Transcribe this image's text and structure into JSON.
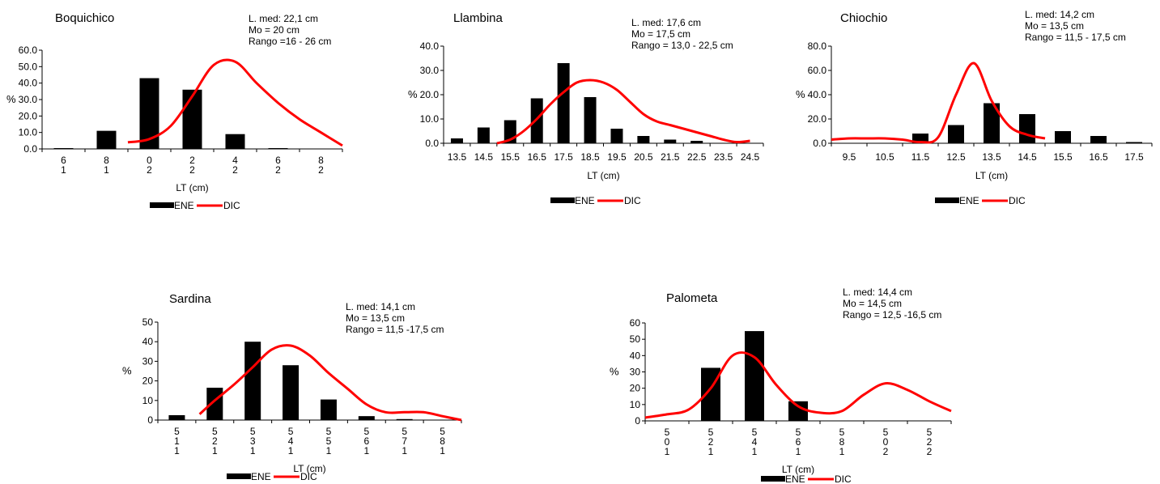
{
  "legend": {
    "bar_label": "ENE",
    "line_label": "DIC"
  },
  "colors": {
    "bars": "#000000",
    "line": "#ff0000",
    "axis": "#000000"
  },
  "chart_data": [
    {
      "type": "bar",
      "title": "Boquichico",
      "annotation": [
        "L. med:  22,1 cm",
        "Mo =  20 cm",
        "Rango =16 - 26 cm"
      ],
      "xlabel": "LT (cm)",
      "ylabel": "%",
      "ylim": [
        0,
        60
      ],
      "yticks": [
        "0.0",
        "10.0",
        "20.0",
        "30.0",
        "40.0",
        "50.0",
        "60.0"
      ],
      "categories": [
        [
          "6",
          "1"
        ],
        [
          "8",
          "1"
        ],
        [
          "0",
          "2"
        ],
        [
          "2",
          "2"
        ],
        [
          "4",
          "2"
        ],
        [
          "6",
          "2"
        ],
        [
          "8",
          "2"
        ]
      ],
      "tick_labels_at": "tick",
      "series": [
        {
          "name": "ENE",
          "kind": "bar",
          "values": [
            0.5,
            11,
            43,
            36,
            9,
            0.5,
            0
          ]
        },
        {
          "name": "DIC",
          "kind": "line",
          "x": [
            2,
            2.5,
            3,
            3.5,
            4,
            4.5,
            5,
            5.5,
            6,
            6.5,
            7
          ],
          "values": [
            4,
            6,
            14,
            32,
            51,
            53,
            40,
            28,
            18,
            10,
            2
          ]
        }
      ],
      "legend_position": "bottom"
    },
    {
      "type": "bar",
      "title": "Llambina",
      "annotation": [
        "L. med: 17,6  cm",
        "Mo =  17,5 cm",
        "Rango = 13,0 - 22,5 cm"
      ],
      "xlabel": "LT (cm)",
      "ylabel": "%",
      "ylim": [
        0,
        40
      ],
      "yticks": [
        "0.0",
        "10.0",
        "20.0",
        "30.0",
        "40.0"
      ],
      "categories": [
        "13.5",
        "14.5",
        "15.5",
        "16.5",
        "17.5",
        "18.5",
        "19.5",
        "20.5",
        "21.5",
        "22.5",
        "23.5",
        "24.5"
      ],
      "tick_labels_at": "center",
      "series": [
        {
          "name": "ENE",
          "kind": "bar",
          "values": [
            2,
            6.5,
            9.5,
            18.5,
            33,
            19,
            6,
            3,
            1.5,
            1,
            0,
            0
          ]
        },
        {
          "name": "DIC",
          "kind": "line",
          "x": [
            2,
            2.5,
            3,
            3.5,
            4,
            4.5,
            5,
            5.5,
            6,
            6.5,
            7,
            7.5,
            8,
            8.5,
            9,
            9.5,
            10,
            10.5,
            11,
            11.5
          ],
          "values": [
            0,
            1.5,
            5,
            10,
            16,
            21,
            25,
            26,
            25,
            22,
            17,
            12,
            9,
            7.5,
            6,
            4.5,
            3,
            1.5,
            0.5,
            1
          ]
        }
      ],
      "legend_position": "bottom"
    },
    {
      "type": "bar",
      "title": "Chiochio",
      "annotation": [
        "L. med: 14,2 cm",
        "Mo =  13,5 cm",
        "Rango = 11,5 - 17,5 cm"
      ],
      "xlabel": "LT (cm)",
      "ylabel": "%",
      "ylim": [
        0,
        80
      ],
      "yticks": [
        "0.0",
        "20.0",
        "40.0",
        "60.0",
        "80.0"
      ],
      "categories": [
        "9.5",
        "10.5",
        "11.5",
        "12.5",
        "13.5",
        "14.5",
        "15.5",
        "16.5",
        "17.5"
      ],
      "tick_labels_at": "center",
      "series": [
        {
          "name": "ENE",
          "kind": "bar",
          "values": [
            0,
            0,
            8,
            15,
            33,
            24,
            10,
            6,
            1
          ]
        },
        {
          "name": "DIC",
          "kind": "line",
          "x": [
            0,
            0.5,
            1,
            1.5,
            2,
            2.5,
            3,
            3.5,
            4,
            4.5,
            5,
            5.5,
            6
          ],
          "values": [
            3,
            4,
            4,
            4,
            3,
            1,
            5,
            40,
            66,
            35,
            14,
            7,
            4
          ]
        }
      ],
      "legend_position": "bottom"
    },
    {
      "type": "bar",
      "title": "Sardina",
      "annotation": [
        "L. med:  14,1 cm",
        "Mo =  13,5 cm",
        "Rango = 11,5 -17,5 cm"
      ],
      "xlabel": "LT (cm)",
      "ylabel": "%",
      "ylim": [
        0,
        50
      ],
      "yticks": [
        "0",
        "10",
        "20",
        "30",
        "40",
        "50"
      ],
      "categories": [
        [
          "5",
          "1",
          "1"
        ],
        [
          "5",
          "2",
          "1"
        ],
        [
          "5",
          "3",
          "1"
        ],
        [
          "5",
          "4",
          "1"
        ],
        [
          "5",
          "5",
          "1"
        ],
        [
          "5",
          "6",
          "1"
        ],
        [
          "5",
          "7",
          "1"
        ],
        [
          "5",
          "8",
          "1"
        ]
      ],
      "tick_labels_at": "tick",
      "series": [
        {
          "name": "ENE",
          "kind": "bar",
          "values": [
            2.5,
            16.5,
            40,
            28,
            10.5,
            2,
            0.5,
            0
          ]
        },
        {
          "name": "DIC",
          "kind": "line",
          "x": [
            1.1,
            1.5,
            2,
            2.5,
            3,
            3.5,
            4,
            4.5,
            5,
            5.5,
            6,
            6.5,
            7,
            7.5,
            8
          ],
          "values": [
            3,
            10,
            18,
            27,
            36,
            38,
            33,
            24,
            16,
            8,
            4,
            4,
            4,
            2,
            0
          ]
        }
      ],
      "legend_position": "bottom"
    },
    {
      "type": "bar",
      "title": "Palometa",
      "annotation": [
        "L. med: 14,4 cm",
        "Mo = 14,5 cm",
        "Rango = 12,5 -16,5 cm"
      ],
      "xlabel": "LT (cm)",
      "ylabel": "%",
      "ylim": [
        0,
        60
      ],
      "yticks": [
        "0",
        "10",
        "20",
        "30",
        "40",
        "50",
        "60"
      ],
      "categories": [
        [
          "5",
          "0",
          "1"
        ],
        [
          "5",
          "2",
          "1"
        ],
        [
          "5",
          "4",
          "1"
        ],
        [
          "5",
          "6",
          "1"
        ],
        [
          "5",
          "8",
          "1"
        ],
        [
          "5",
          "0",
          "2"
        ],
        [
          "5",
          "2",
          "2"
        ]
      ],
      "tick_labels_at": "tick",
      "series": [
        {
          "name": "ENE",
          "kind": "bar",
          "values": [
            0,
            32.5,
            55,
            12,
            0,
            0,
            0
          ]
        },
        {
          "name": "DIC",
          "kind": "line",
          "x": [
            0,
            0.5,
            1,
            1.5,
            2,
            2.5,
            3,
            3.5,
            4,
            4.5,
            5,
            5.5,
            6,
            6.5,
            7
          ],
          "values": [
            2,
            4,
            7,
            20,
            40,
            39,
            22,
            9,
            5,
            6,
            16,
            23,
            19,
            12,
            6
          ]
        }
      ],
      "legend_position": "bottom"
    }
  ]
}
